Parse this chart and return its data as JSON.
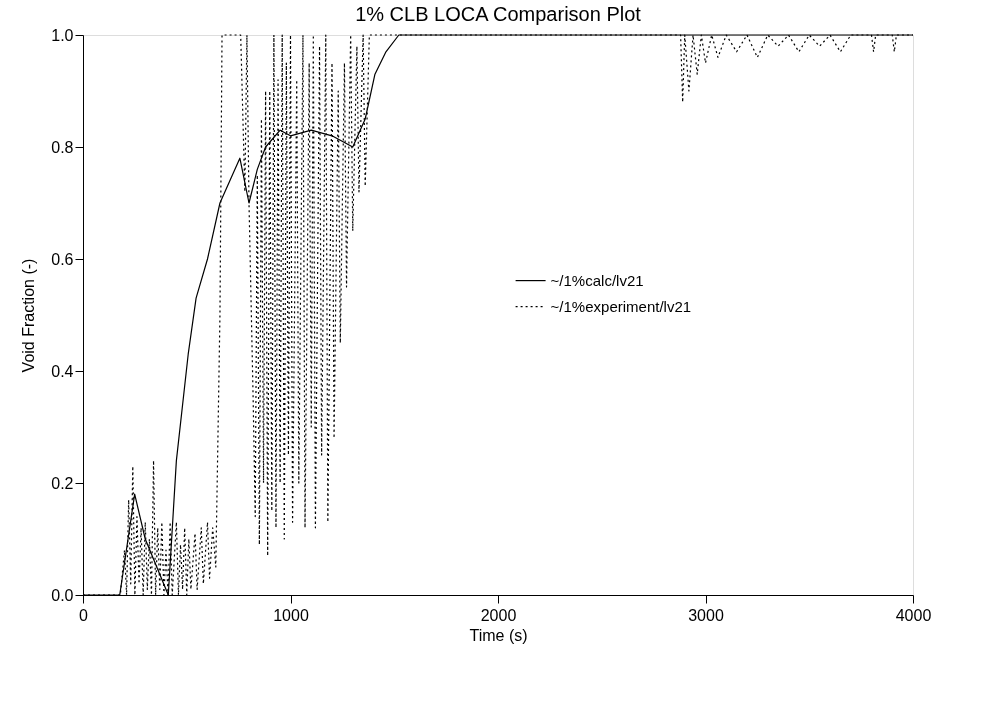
{
  "chart_data": {
    "type": "line",
    "title": "1% CLB LOCA Comparison Plot",
    "xlabel": "Time (s)",
    "ylabel": "Void Fraction (-)",
    "xlim": [
      0,
      4000
    ],
    "ylim": [
      0,
      1
    ],
    "xticks": [
      0,
      1000,
      2000,
      3000,
      4000
    ],
    "yticks": [
      {
        "value": 0,
        "label": "0.0"
      },
      {
        "value": 0.2,
        "label": "0.2"
      },
      {
        "value": 0.4,
        "label": "0.4"
      },
      {
        "value": 0.6,
        "label": "0.6"
      },
      {
        "value": 0.8,
        "label": "0.8"
      },
      {
        "value": 1,
        "label": "1.0"
      }
    ],
    "grid": false,
    "legend": "right",
    "marker": "none",
    "series": [
      {
        "name": "~/1%calc/lv21",
        "color": "#000000",
        "line_style": "solid",
        "x": [
          0,
          177,
          249,
          300,
          411,
          450,
          507,
          545,
          600,
          660,
          720,
          756,
          800,
          840,
          880,
          950,
          1000,
          1100,
          1200,
          1300,
          1360,
          1407,
          1460,
          1522,
          2000,
          3000,
          4000
        ],
        "values": [
          0,
          0,
          0.18,
          0.1,
          0,
          0.24,
          0.43,
          0.53,
          0.6,
          0.7,
          0.75,
          0.78,
          0.7,
          0.76,
          0.8,
          0.83,
          0.82,
          0.83,
          0.82,
          0.8,
          0.85,
          0.93,
          0.97,
          1,
          1,
          1,
          1
        ]
      },
      {
        "name": "~/1%experiment/lv21",
        "color": "#000000",
        "line_style": "dotted",
        "x": [
          0,
          180,
          200,
          210,
          220,
          230,
          240,
          250,
          260,
          270,
          280,
          290,
          300,
          310,
          320,
          330,
          340,
          350,
          360,
          370,
          380,
          390,
          400,
          410,
          420,
          430,
          450,
          460,
          470,
          480,
          490,
          500,
          510,
          520,
          540,
          550,
          570,
          580,
          600,
          610,
          625,
          640,
          660,
          670,
          760,
          780,
          790,
          800,
          820,
          830,
          840,
          850,
          860,
          870,
          880,
          890,
          900,
          910,
          920,
          930,
          940,
          950,
          960,
          970,
          980,
          990,
          1000,
          1010,
          1030,
          1040,
          1060,
          1070,
          1090,
          1100,
          1110,
          1120,
          1140,
          1150,
          1170,
          1180,
          1200,
          1210,
          1230,
          1240,
          1260,
          1270,
          1290,
          1300,
          1320,
          1330,
          1350,
          1360,
          1380,
          1400,
          2880,
          2890,
          2900,
          2920,
          2940,
          2960,
          2980,
          3000,
          3030,
          3060,
          3100,
          3150,
          3200,
          3250,
          3300,
          3350,
          3400,
          3450,
          3500,
          3550,
          3600,
          3650,
          3700,
          3800,
          3810,
          3820,
          3900,
          3910,
          3920,
          4000
        ],
        "values": [
          0,
          0,
          0.08,
          0.0,
          0.17,
          0.02,
          0.23,
          0.0,
          0.14,
          0.02,
          0.12,
          0.0,
          0.13,
          0.01,
          0.1,
          0.0,
          0.24,
          0.0,
          0.12,
          0.01,
          0.13,
          0.0,
          0.08,
          0.0,
          0.13,
          0.0,
          0.13,
          0.0,
          0.09,
          0.01,
          0.12,
          0.0,
          0.1,
          0.01,
          0.11,
          0.01,
          0.12,
          0.02,
          0.13,
          0.03,
          0.12,
          0.05,
          0.5,
          1,
          1,
          0.72,
          1,
          0.7,
          0.35,
          0.14,
          0.75,
          0.09,
          0.85,
          0.2,
          0.9,
          0.07,
          0.9,
          0.15,
          1,
          0.12,
          0.92,
          0.2,
          1,
          0.1,
          0.95,
          0.25,
          1,
          0.13,
          0.92,
          0.2,
          1,
          0.12,
          0.95,
          0.3,
          1,
          0.12,
          0.98,
          0.25,
          1,
          0.13,
          0.95,
          0.28,
          0.9,
          0.45,
          0.95,
          0.55,
          1,
          0.65,
          0.98,
          0.72,
          1,
          0.73,
          1,
          1,
          1,
          0.88,
          1,
          0.9,
          1,
          0.93,
          1,
          0.95,
          1,
          0.96,
          1,
          0.97,
          1,
          0.96,
          1,
          0.98,
          1,
          0.97,
          1,
          0.98,
          1,
          0.97,
          1,
          1,
          0.97,
          1,
          1,
          0.97,
          1,
          1
        ]
      }
    ]
  }
}
